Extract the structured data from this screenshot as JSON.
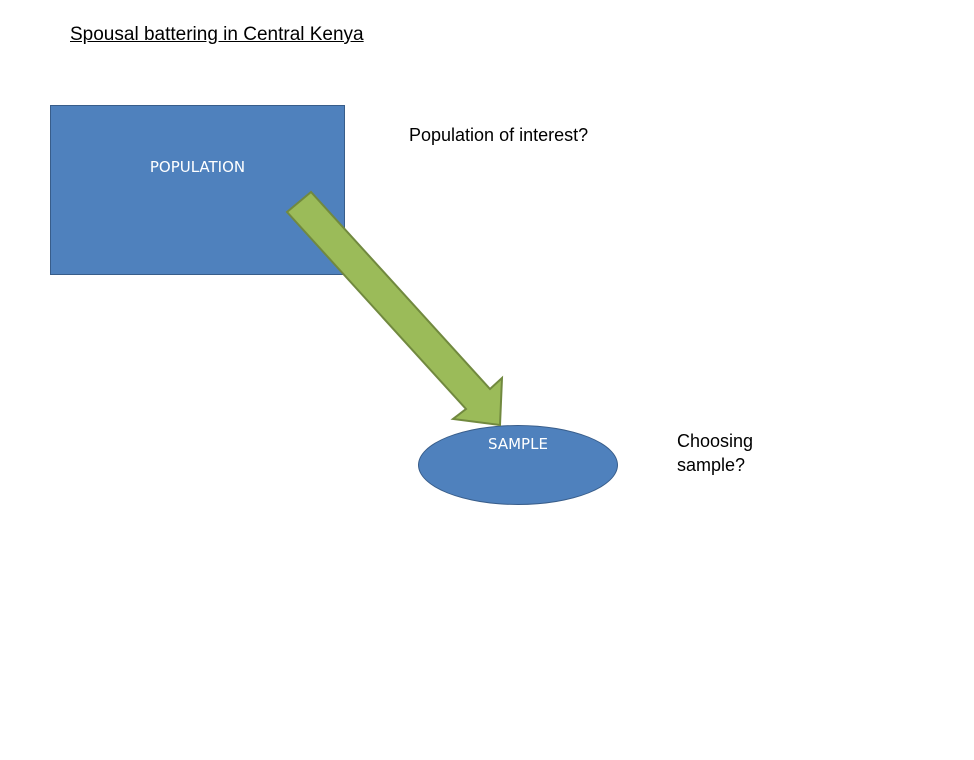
{
  "title": "Spousal battering in Central Kenya",
  "population": {
    "label": "POPULATION",
    "question": "Population of interest?"
  },
  "sample": {
    "label": "SAMPLE",
    "question_line1": "Choosing",
    "question_line2": "sample?"
  },
  "colors": {
    "shape_fill": "#4f81bd",
    "shape_border": "#385d8a",
    "arrow_fill": "#9bbb59",
    "arrow_border": "#71893f",
    "shape_text": "#ffffff"
  }
}
